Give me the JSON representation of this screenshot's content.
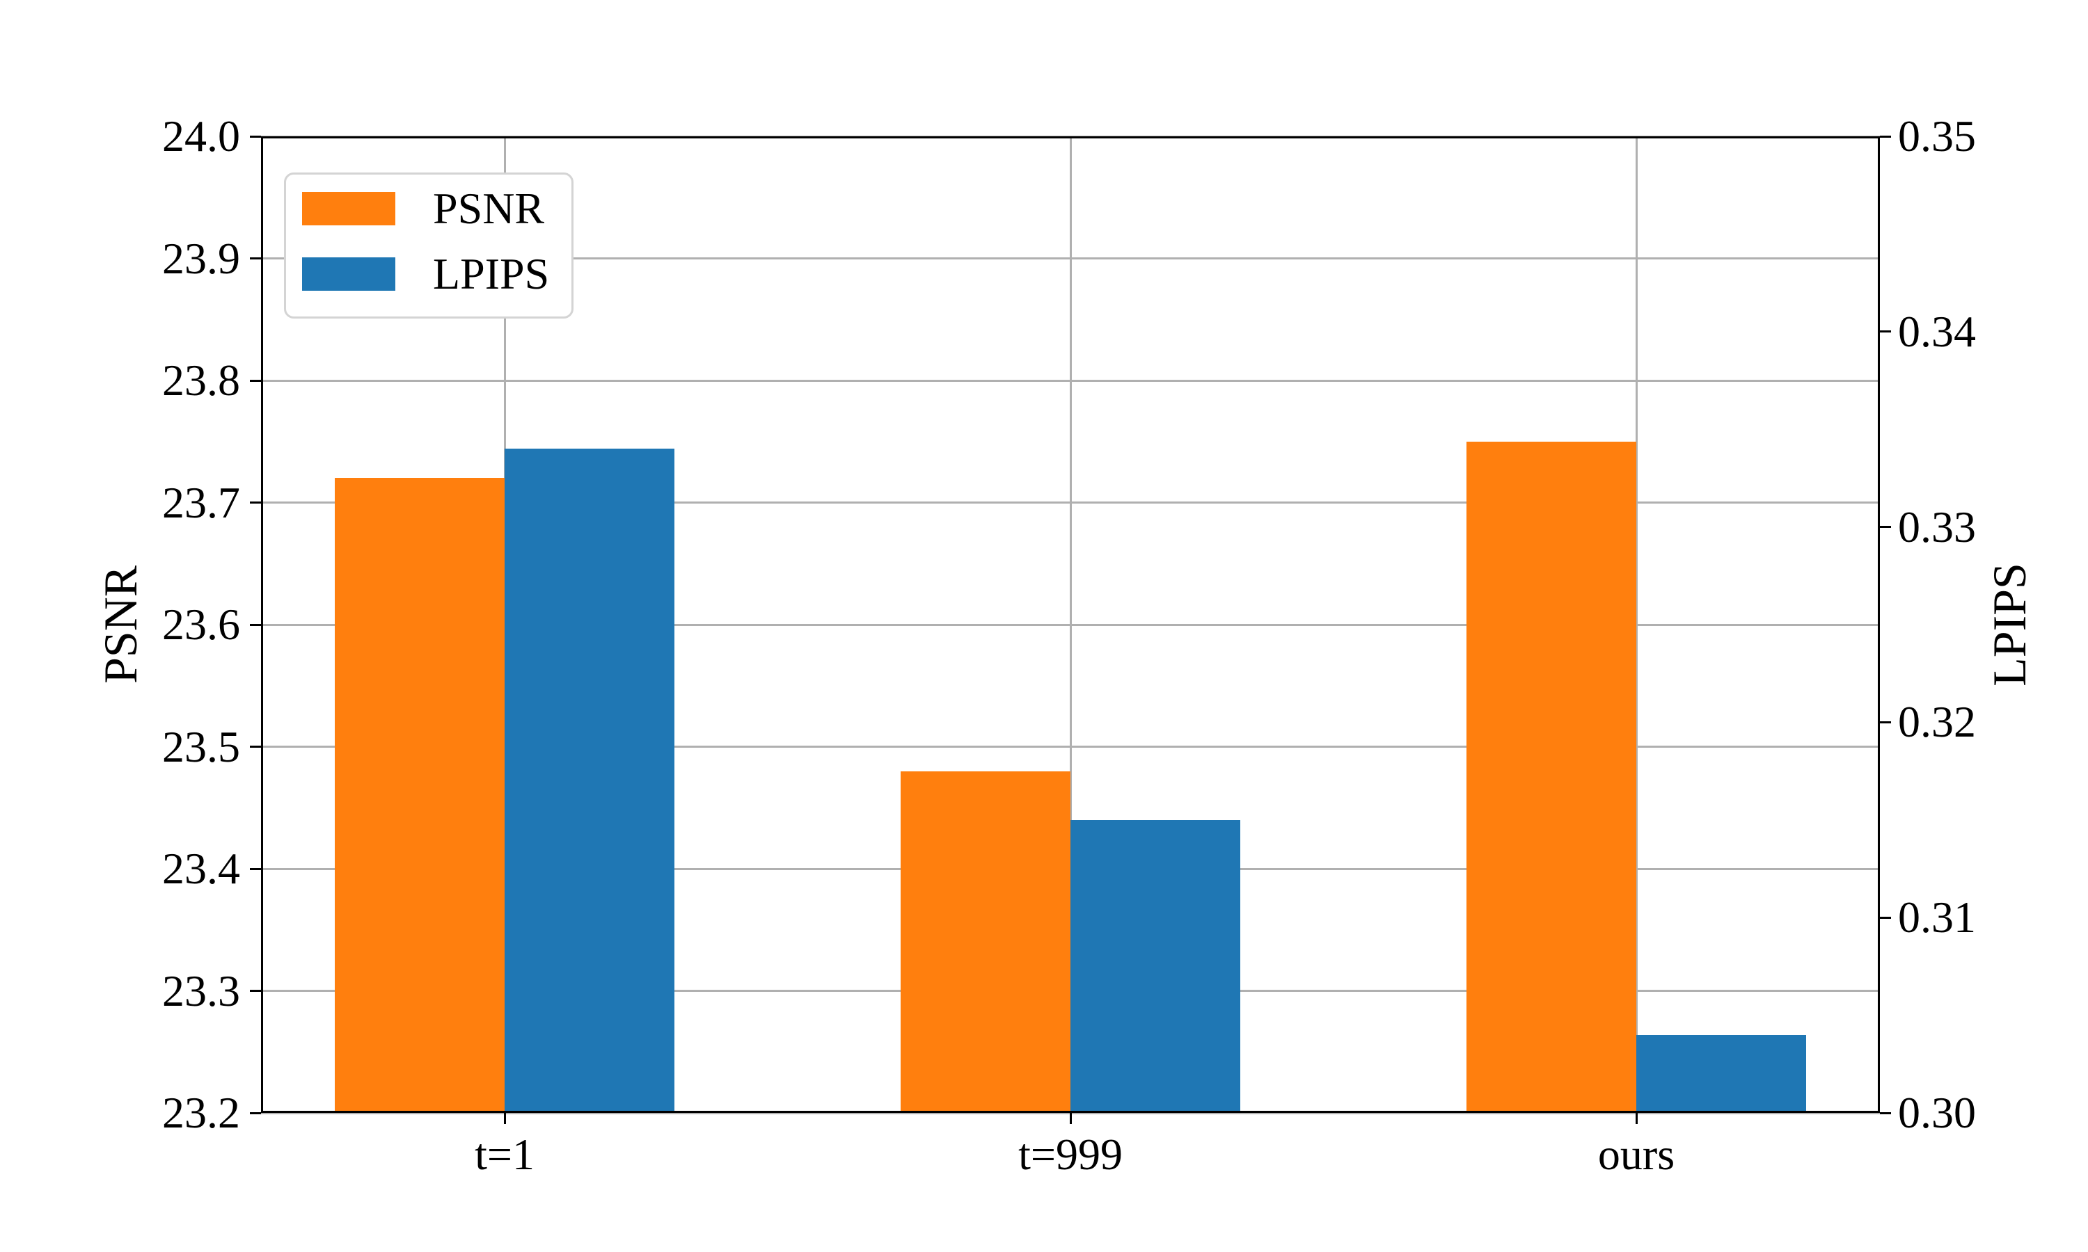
{
  "chart_data": {
    "type": "bar",
    "categories": [
      "t=1",
      "t=999",
      "ours"
    ],
    "series": [
      {
        "name": "PSNR",
        "axis": "left",
        "color": "#ff7f0e",
        "values": [
          23.72,
          23.48,
          23.75
        ]
      },
      {
        "name": "LPIPS",
        "axis": "right",
        "color": "#1f77b4",
        "values": [
          0.334,
          0.315,
          0.304
        ]
      }
    ],
    "left_axis": {
      "label": "PSNR",
      "min": 23.2,
      "max": 24.0,
      "tick_labels": [
        "24.0",
        "23.9",
        "23.8",
        "23.7",
        "23.6",
        "23.5",
        "23.4",
        "23.3",
        "23.2"
      ]
    },
    "right_axis": {
      "label": "LPIPS",
      "min": 0.3,
      "max": 0.35,
      "tick_labels": [
        "0.35",
        "0.34",
        "0.33",
        "0.32",
        "0.31",
        "0.30"
      ]
    },
    "title": "",
    "grid": true,
    "grid_color": "#b0b0b0",
    "legend_position": "upper left",
    "background_color": "#ffffff",
    "text_color": "#000000"
  }
}
